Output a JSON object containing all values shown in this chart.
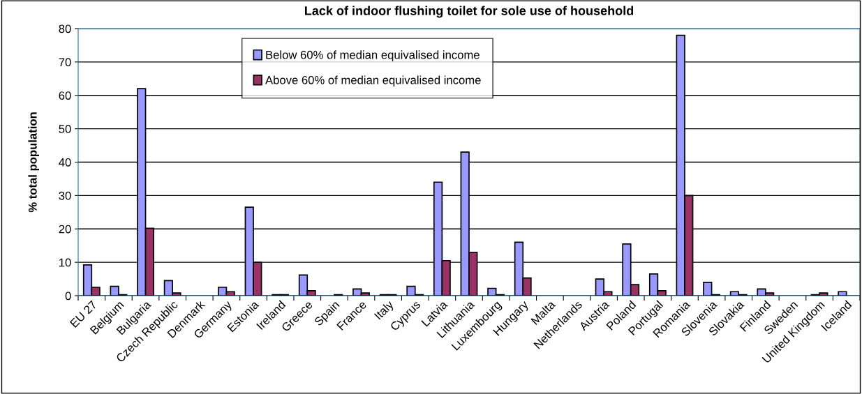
{
  "chart_data": {
    "type": "bar",
    "title": "Lack of indoor flushing toilet for sole use of household",
    "ylabel": "% total population",
    "categories": [
      "EU 27",
      "Belgium",
      "Bulgaria",
      "Czech Republic",
      "Denmark",
      "Germany",
      "Estonia",
      "Ireland",
      "Greece",
      "Spain",
      "France",
      "Italy",
      "Cyprus",
      "Latvia",
      "Lithuania",
      "Luxembourg",
      "Hungary",
      "Malta",
      "Netherlands",
      "Austria",
      "Poland",
      "Portugal",
      "Romania",
      "Slovenia",
      "Slovakia",
      "Finland",
      "Sweden",
      "United Kingdom",
      "Iceland"
    ],
    "series": [
      {
        "name": "Below 60% of median equivalised income",
        "color": "#9999ff",
        "values": [
          9.2,
          2.8,
          62,
          4.5,
          0,
          2.5,
          26.5,
          0.3,
          6.2,
          0,
          2,
          0.3,
          2.8,
          34,
          43,
          2.2,
          16,
          null,
          0,
          5,
          15.5,
          6.5,
          78,
          4,
          1.2,
          2,
          0,
          0.3,
          1.2
        ]
      },
      {
        "name": "Above 60% of median equivalised income",
        "color": "#993366",
        "values": [
          2.5,
          0.3,
          20.2,
          0.8,
          0,
          1.2,
          10,
          0.3,
          1.5,
          0.3,
          0.8,
          0.3,
          0.3,
          10.5,
          13,
          0.3,
          5.3,
          0,
          0,
          1.2,
          3.3,
          1.5,
          30,
          0.3,
          0.3,
          0.8,
          0,
          0.8,
          0
        ]
      }
    ],
    "ylim": [
      0,
      80
    ],
    "yticks": [
      0,
      10,
      20,
      30,
      40,
      50,
      60,
      70,
      80
    ],
    "grid": "y",
    "legend": "top"
  }
}
